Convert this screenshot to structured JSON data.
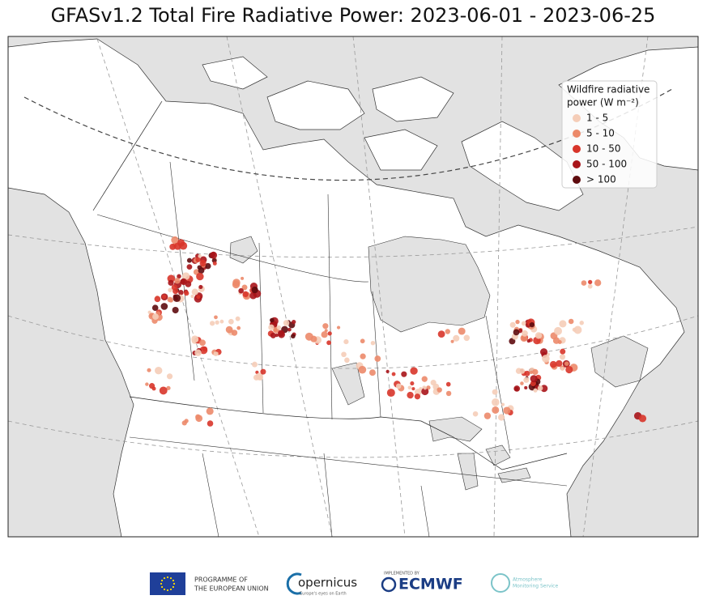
{
  "title": "GFASv1.2 Total Fire Radiative Power: 2023-06-01 - 2023-06-25",
  "legend": {
    "title_lines": [
      "Wildfire radiative",
      "power (W m⁻²)"
    ],
    "items": [
      {
        "label": "1 - 5",
        "color": "#f5cdb8"
      },
      {
        "label": "5 - 10",
        "color": "#ec8a6a"
      },
      {
        "label": "10 - 50",
        "color": "#d8352a"
      },
      {
        "label": "50 - 100",
        "color": "#a81419"
      },
      {
        "label": "> 100",
        "color": "#5e0b0e"
      }
    ]
  },
  "footer": {
    "eu_lines": [
      "PROGRAMME OF",
      "THE EUROPEAN UNION"
    ],
    "copernicus": "opernicus",
    "copernicus_sub": "Europe's eyes on Earth",
    "implemented": "IMPLEMENTED BY",
    "ecmwf": "ECMWF",
    "cams_lines": [
      "Atmosphere",
      "Monitoring Service"
    ]
  }
}
